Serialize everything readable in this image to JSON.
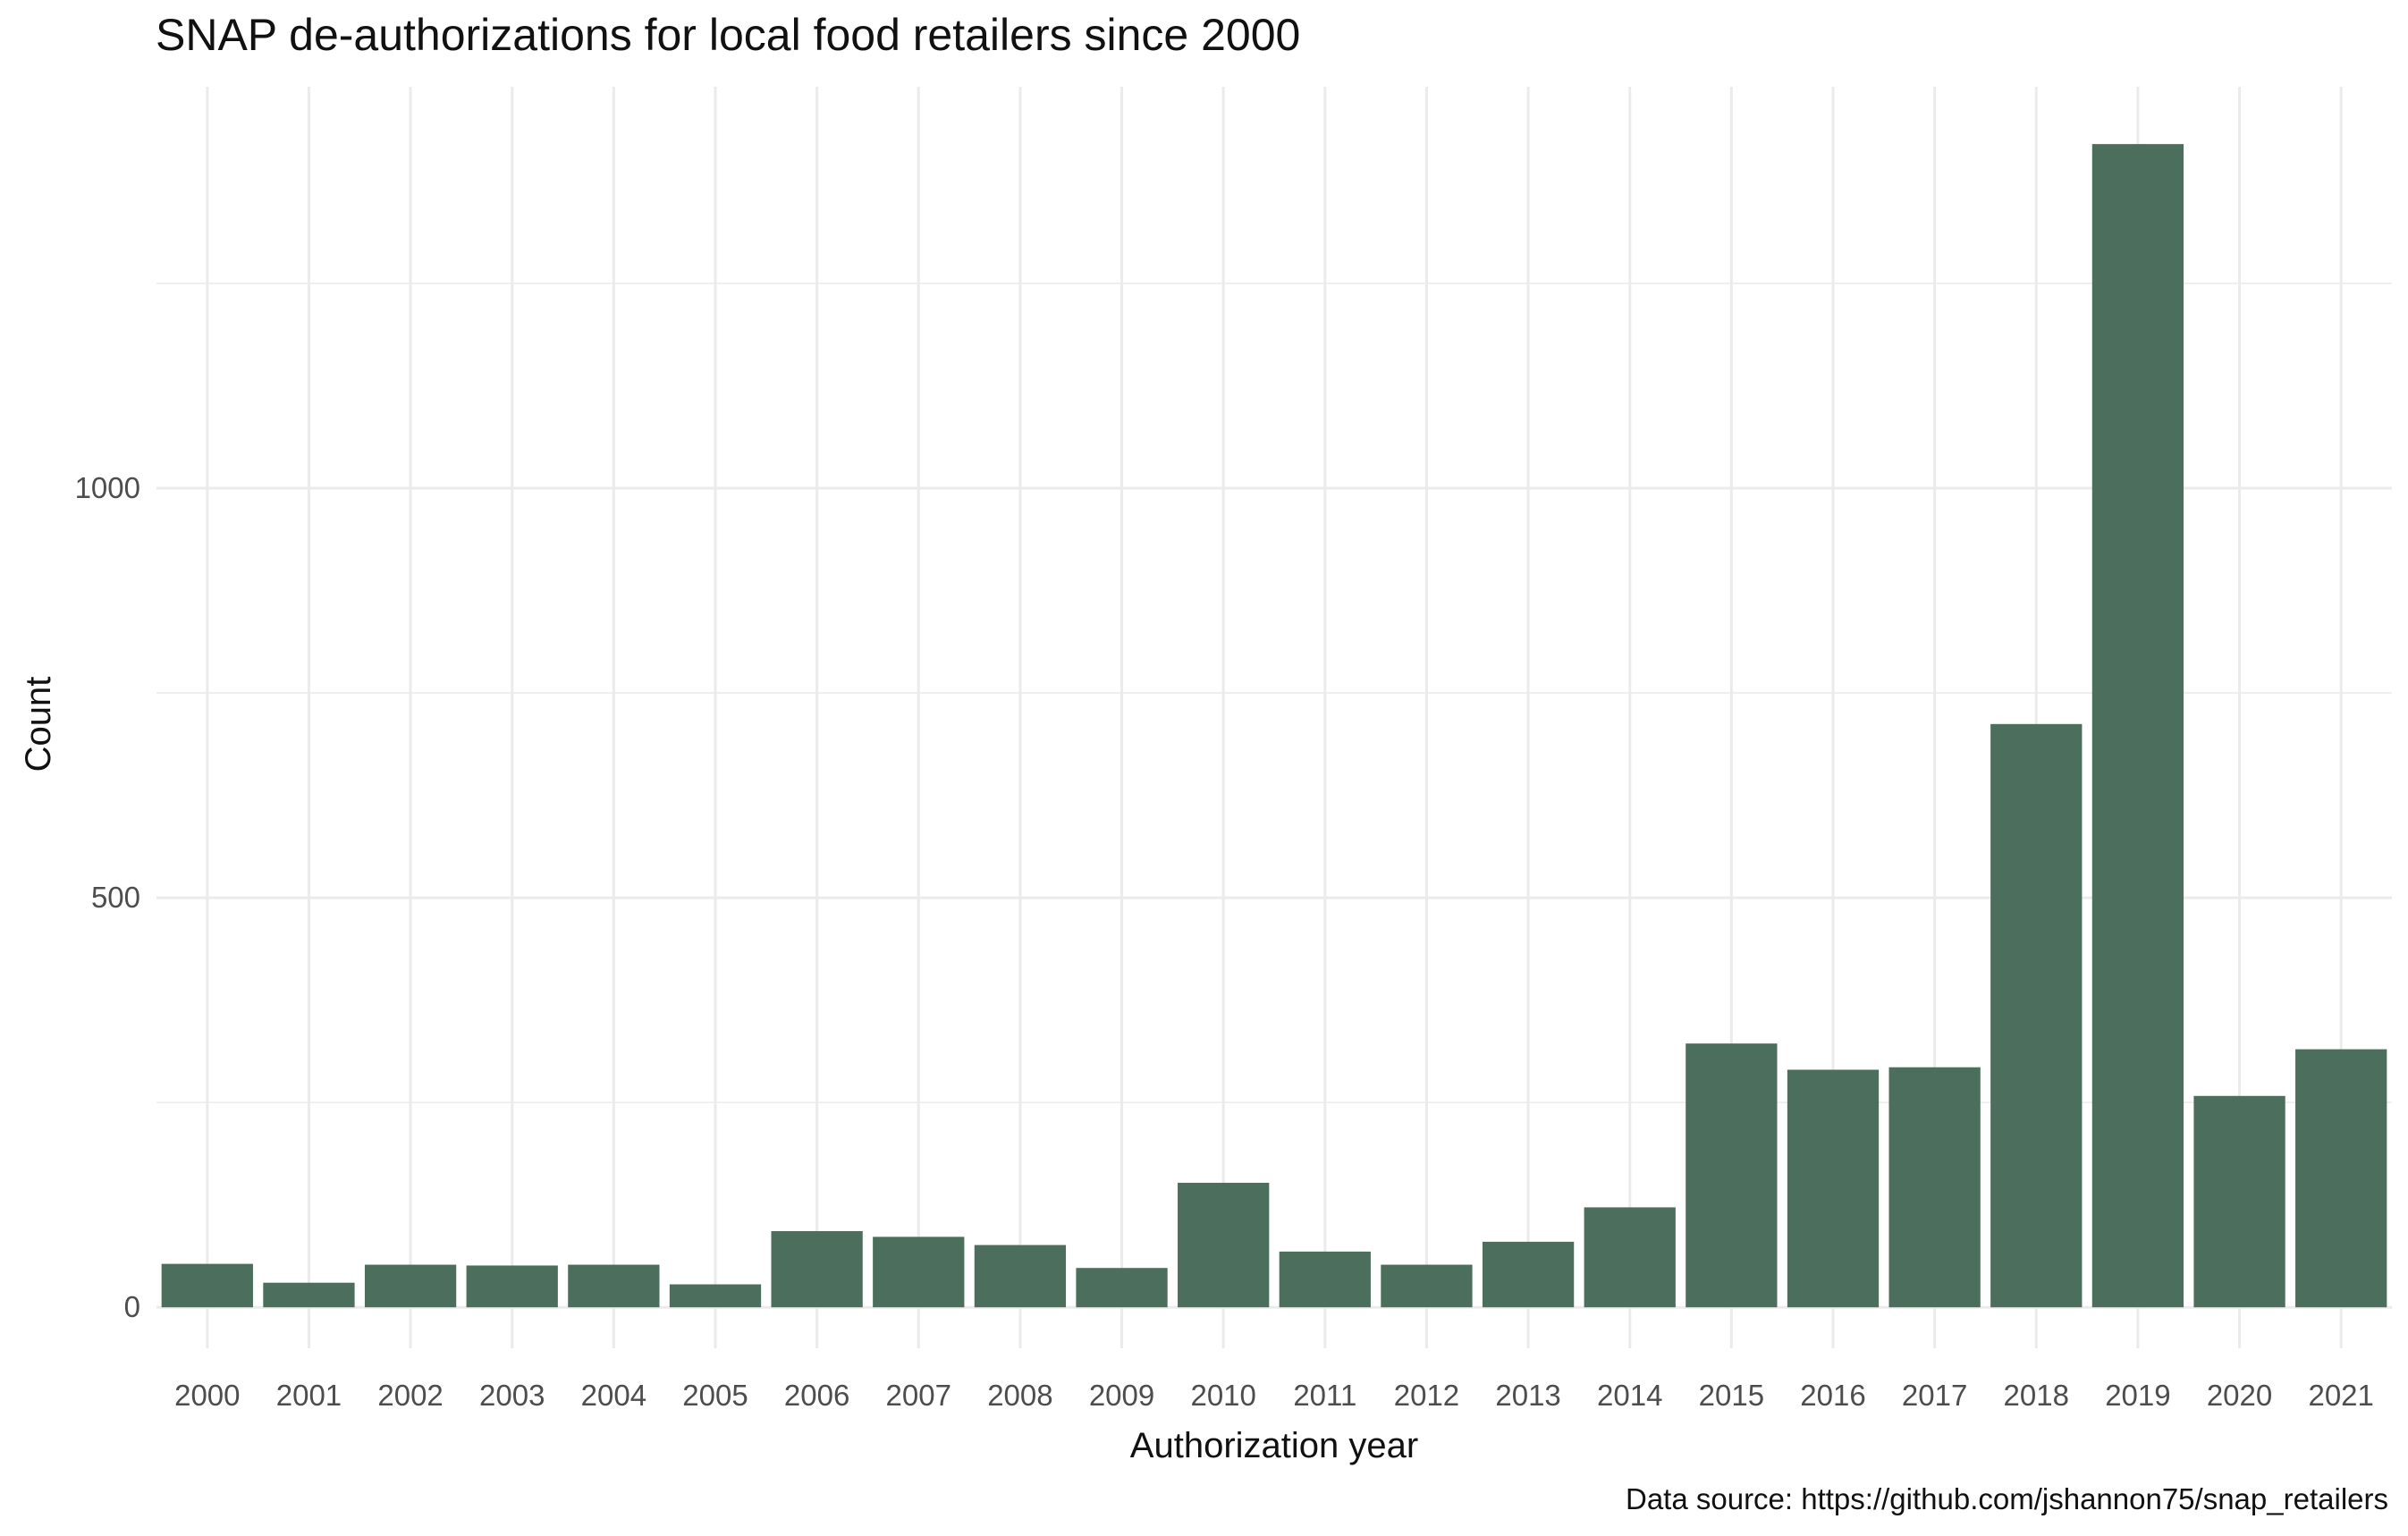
{
  "chart_data": {
    "type": "bar",
    "title": "SNAP de-authorizations for local food retailers since 2000",
    "xlabel": "Authorization year",
    "ylabel": "Count",
    "caption": "Data source: https://github.com/jshannon75/snap_retailers",
    "categories": [
      "2000",
      "2001",
      "2002",
      "2003",
      "2004",
      "2005",
      "2006",
      "2007",
      "2008",
      "2009",
      "2010",
      "2011",
      "2012",
      "2013",
      "2014",
      "2015",
      "2016",
      "2017",
      "2018",
      "2019",
      "2020",
      "2021"
    ],
    "values": [
      53,
      30,
      52,
      51,
      52,
      28,
      93,
      86,
      76,
      48,
      152,
      68,
      52,
      80,
      122,
      322,
      290,
      293,
      712,
      1420,
      258,
      315
    ],
    "y_ticks": [
      "0",
      "500",
      "1000"
    ],
    "ylim": [
      -50,
      1490
    ],
    "grid": true,
    "bar_color": "#4c6e5d",
    "grid_color": "#ebebeb"
  }
}
